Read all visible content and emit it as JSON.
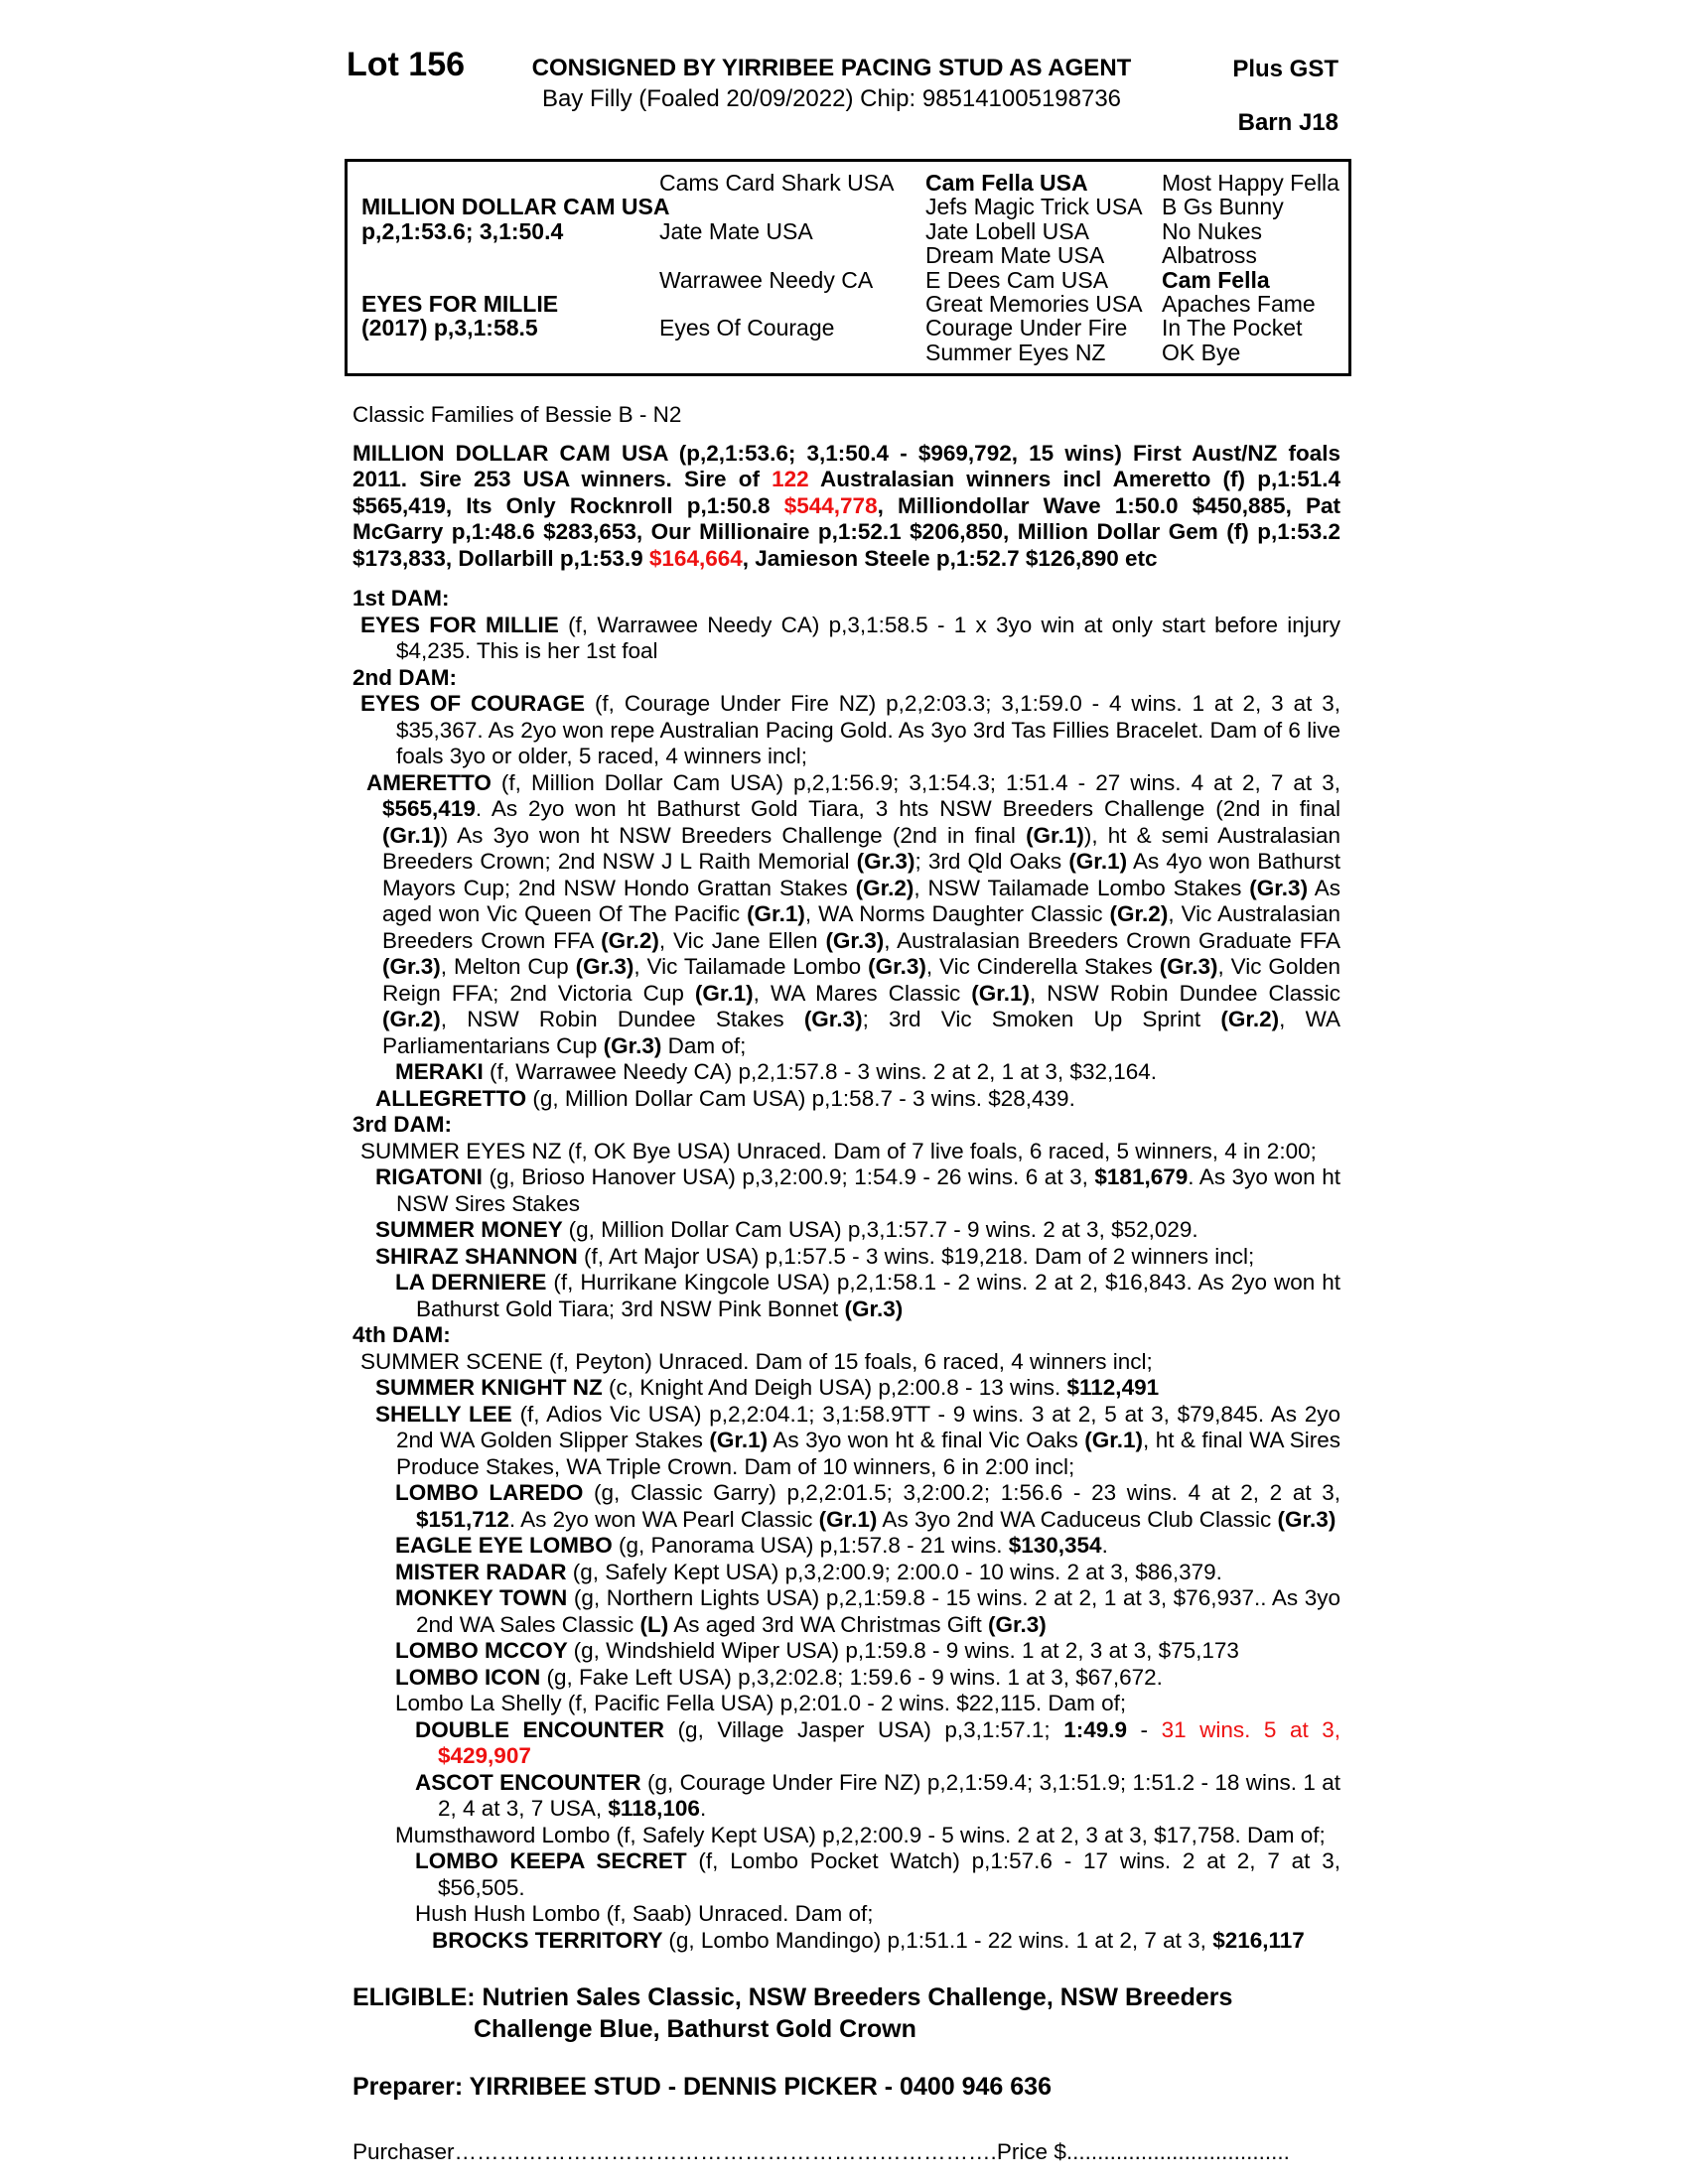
{
  "accent_red": "#ee1111",
  "header": {
    "lot": "Lot 156",
    "consigned": "CONSIGNED BY YIRRIBEE PACING STUD AS AGENT",
    "foal_line": "Bay Filly (Foaled  20/09/2022) Chip: 985141005198736",
    "plus_gst": "Plus GST",
    "barn": "Barn J18"
  },
  "pedigree_table": {
    "cells": [
      {
        "c": 1,
        "r": 2,
        "t": "MILLION DOLLAR CAM USA",
        "b": 1
      },
      {
        "c": 1,
        "r": 3,
        "t": "p,2,1:53.6; 3,1:50.4",
        "b": 1
      },
      {
        "c": 1,
        "r": 6,
        "t": "EYES FOR MILLIE",
        "b": 1
      },
      {
        "c": 1,
        "r": 7,
        "t": "(2017) p,3,1:58.5",
        "b": 1
      },
      {
        "c": 2,
        "r": 1,
        "t": "Cams Card Shark USA"
      },
      {
        "c": 2,
        "r": 3,
        "t": "Jate Mate USA"
      },
      {
        "c": 2,
        "r": 5,
        "t": "Warrawee Needy CA"
      },
      {
        "c": 2,
        "r": 7,
        "t": "Eyes Of Courage"
      },
      {
        "c": 3,
        "r": 1,
        "t": "Cam Fella USA",
        "b": 1
      },
      {
        "c": 3,
        "r": 2,
        "t": "Jefs Magic Trick USA"
      },
      {
        "c": 3,
        "r": 3,
        "t": "Jate Lobell USA"
      },
      {
        "c": 3,
        "r": 4,
        "t": "Dream Mate USA"
      },
      {
        "c": 3,
        "r": 5,
        "t": "E Dees Cam USA"
      },
      {
        "c": 3,
        "r": 6,
        "t": "Great Memories USA"
      },
      {
        "c": 3,
        "r": 7,
        "t": "Courage Under Fire"
      },
      {
        "c": 3,
        "r": 8,
        "t": "Summer Eyes NZ"
      },
      {
        "c": 4,
        "r": 1,
        "t": "Most Happy Fella"
      },
      {
        "c": 4,
        "r": 2,
        "t": "B Gs Bunny"
      },
      {
        "c": 4,
        "r": 3,
        "t": "No Nukes"
      },
      {
        "c": 4,
        "r": 4,
        "t": "Albatross"
      },
      {
        "c": 4,
        "r": 5,
        "t": "Cam Fella",
        "b": 1
      },
      {
        "c": 4,
        "r": 6,
        "t": "Apaches Fame"
      },
      {
        "c": 4,
        "r": 7,
        "t": "In The Pocket"
      },
      {
        "c": 4,
        "r": 8,
        "t": "OK Bye"
      }
    ]
  },
  "family_line": "Classic Families of Bessie B - N2",
  "body": [
    {
      "cls": "mt12",
      "name": "sire-summary",
      "seg": [
        {
          "t": "MILLION DOLLAR CAM USA (p,2,1:53.6; 3,1:50.4 - $969,792, 15 wins) First Aust/NZ foals 2011. Sire 253 USA winners. Sire of ",
          "b": 1
        },
        {
          "t": "122",
          "b": 1,
          "r": 1
        },
        {
          "t": " Australasian winners incl Ameretto (f) p,1:51.4 $565,419, Its Only Rocknroll p,1:50.8 ",
          "b": 1
        },
        {
          "t": "$544,778",
          "b": 1,
          "r": 1
        },
        {
          "t": ",  Milliondollar Wave 1:50.0 $450,885, Pat McGarry p,1:48.6 $283,653, Our Millionaire p,1:52.1 $206,850, Million Dollar Gem (f) p,1:53.2 $173,833, Dollarbill p,1:53.9 ",
          "b": 1
        },
        {
          "t": "$164,664",
          "b": 1,
          "r": 1
        },
        {
          "t": ", Jamieson Steele p,1:52.7 $126,890 etc",
          "b": 1
        }
      ]
    },
    {
      "cls": "h mt14",
      "name": "dam-heading-1st",
      "seg": [
        {
          "t": "1st DAM:",
          "b": 1
        }
      ]
    },
    {
      "cls": "i1",
      "name": "horse-entry",
      "seg": [
        {
          "t": "EYES FOR MILLIE ",
          "b": 1
        },
        {
          "t": "(f, Warrawee Needy CA) p,3,1:58.5 - 1 x 3yo win at only start before injury $4,235. This is her 1st foal"
        }
      ]
    },
    {
      "cls": "h",
      "name": "dam-heading-2nd",
      "seg": [
        {
          "t": "2nd DAM:",
          "b": 1
        }
      ]
    },
    {
      "cls": "i1",
      "name": "horse-entry",
      "seg": [
        {
          "t": "EYES OF COURAGE ",
          "b": 1
        },
        {
          "t": "(f, Courage Under Fire NZ) p,2,2:03.3; 3,1:59.0 - 4 wins. 1 at 2, 3 at 3, $35,367. As 2yo won repe Australian Pacing Gold. As 3yo 3rd Tas Fillies Bracelet. Dam of 6 live foals 3yo or older, 5 raced, 4 winners incl;"
        }
      ]
    },
    {
      "cls": "iA",
      "name": "horse-entry",
      "seg": [
        {
          "t": "AMERETTO ",
          "b": 1
        },
        {
          "t": "(f, Million Dollar Cam USA) p,2,1:56.9; 3,1:54.3; 1:51.4 - 27 wins. 4 at 2, 7 at 3, "
        },
        {
          "t": "$565,419",
          "b": 1
        },
        {
          "t": ". As 2yo won ht Bathurst Gold Tiara, 3 hts NSW Breeders Challenge (2nd in final "
        },
        {
          "t": "(Gr.1)",
          "b": 1
        },
        {
          "t": ") As 3yo won ht NSW Breeders Challenge (2nd in final "
        },
        {
          "t": "(Gr.1)",
          "b": 1
        },
        {
          "t": "), ht & semi Australasian Breeders Crown; 2nd NSW J L Raith Memorial "
        },
        {
          "t": "(Gr.3)",
          "b": 1
        },
        {
          "t": "; 3rd Qld Oaks "
        },
        {
          "t": "(Gr.1)",
          "b": 1
        },
        {
          "t": " As 4yo won Bathurst Mayors Cup; 2nd NSW Hondo Grattan Stakes "
        },
        {
          "t": "(Gr.2)",
          "b": 1
        },
        {
          "t": ", NSW Tailamade Lombo Stakes "
        },
        {
          "t": "(Gr.3)",
          "b": 1
        },
        {
          "t": " As aged won Vic Queen Of The Pacific "
        },
        {
          "t": "(Gr.1)",
          "b": 1
        },
        {
          "t": ", WA Norms Daughter Classic "
        },
        {
          "t": "(Gr.2)",
          "b": 1
        },
        {
          "t": ", Vic Australasian Breeders Crown FFA "
        },
        {
          "t": "(Gr.2)",
          "b": 1
        },
        {
          "t": ", Vic Jane Ellen "
        },
        {
          "t": "(Gr.3)",
          "b": 1
        },
        {
          "t": ", Australasian Breeders Crown Graduate FFA "
        },
        {
          "t": "(Gr.3)",
          "b": 1
        },
        {
          "t": ", Melton Cup "
        },
        {
          "t": "(Gr.3)",
          "b": 1
        },
        {
          "t": ", Vic Tailamade Lombo "
        },
        {
          "t": "(Gr.3)",
          "b": 1
        },
        {
          "t": ", Vic Cinderella Stakes "
        },
        {
          "t": "(Gr.3)",
          "b": 1
        },
        {
          "t": ", Vic Golden Reign FFA; 2nd Victoria Cup "
        },
        {
          "t": "(Gr.1)",
          "b": 1
        },
        {
          "t": ", WA Mares Classic "
        },
        {
          "t": "(Gr.1)",
          "b": 1
        },
        {
          "t": ", NSW Robin Dundee Classic "
        },
        {
          "t": "(Gr.2)",
          "b": 1
        },
        {
          "t": ", NSW Robin Dundee Stakes "
        },
        {
          "t": "(Gr.3)",
          "b": 1
        },
        {
          "t": "; 3rd Vic Smoken Up Sprint "
        },
        {
          "t": "(Gr.2)",
          "b": 1
        },
        {
          "t": ", WA Parliamentarians Cup "
        },
        {
          "t": "(Gr.3)",
          "b": 1
        },
        {
          "t": " Dam of;"
        }
      ]
    },
    {
      "cls": "i3",
      "name": "horse-entry",
      "seg": [
        {
          "t": "MERAKI ",
          "b": 1
        },
        {
          "t": "(f, Warrawee Needy CA) p,2,1:57.8 - 3 wins. 2 at 2, 1 at 3, $32,164."
        }
      ]
    },
    {
      "cls": "i2",
      "name": "horse-entry",
      "seg": [
        {
          "t": "ALLEGRETTO ",
          "b": 1
        },
        {
          "t": "(g, Million Dollar Cam USA) p,1:58.7 - 3 wins. $28,439."
        }
      ]
    },
    {
      "cls": "h",
      "name": "dam-heading-3rd",
      "seg": [
        {
          "t": "3rd DAM:",
          "b": 1
        }
      ]
    },
    {
      "cls": "i1",
      "name": "horse-entry",
      "seg": [
        {
          "t": "SUMMER EYES NZ (f, OK Bye USA) Unraced. Dam of 7 live foals, 6 raced, 5 winners, 4 in 2:00;"
        }
      ]
    },
    {
      "cls": "i2",
      "name": "horse-entry",
      "seg": [
        {
          "t": "RIGATONI ",
          "b": 1
        },
        {
          "t": "(g, Brioso Hanover USA) p,3,2:00.9; 1:54.9 - 26 wins. 6 at 3, "
        },
        {
          "t": "$181,679",
          "b": 1
        },
        {
          "t": ". As 3yo won ht NSW Sires Stakes"
        }
      ]
    },
    {
      "cls": "i2",
      "name": "horse-entry",
      "seg": [
        {
          "t": "SUMMER MONEY ",
          "b": 1
        },
        {
          "t": "(g, Million Dollar Cam USA) p,3,1:57.7 - 9 wins. 2 at 3, $52,029."
        }
      ]
    },
    {
      "cls": "i2",
      "name": "horse-entry",
      "seg": [
        {
          "t": "SHIRAZ SHANNON ",
          "b": 1
        },
        {
          "t": "(f, Art Major USA) p,1:57.5 - 3 wins. $19,218. Dam of 2 winners incl;"
        }
      ]
    },
    {
      "cls": "i3",
      "name": "horse-entry",
      "seg": [
        {
          "t": "LA DERNIERE ",
          "b": 1
        },
        {
          "t": "(f, Hurrikane Kingcole USA) p,2,1:58.1 - 2 wins. 2 at 2, $16,843. As 2yo won ht Bathurst Gold Tiara; 3rd NSW Pink Bonnet "
        },
        {
          "t": "(Gr.3)",
          "b": 1
        }
      ]
    },
    {
      "cls": "h",
      "name": "dam-heading-4th",
      "seg": [
        {
          "t": "4th DAM:",
          "b": 1
        }
      ]
    },
    {
      "cls": "i1",
      "name": "horse-entry",
      "seg": [
        {
          "t": "SUMMER SCENE (f, Peyton) Unraced. Dam of 15 foals, 6 raced, 4 winners incl;"
        }
      ]
    },
    {
      "cls": "i2",
      "name": "horse-entry",
      "seg": [
        {
          "t": "SUMMER KNIGHT NZ ",
          "b": 1
        },
        {
          "t": "(c, Knight And Deigh USA) p,2:00.8 - 13 wins. "
        },
        {
          "t": "$112,491",
          "b": 1
        }
      ]
    },
    {
      "cls": "i2",
      "name": "horse-entry",
      "seg": [
        {
          "t": "SHELLY LEE ",
          "b": 1
        },
        {
          "t": "(f, Adios Vic USA) p,2,2:04.1; 3,1:58.9TT - 9 wins. 3 at 2, 5 at 3, $79,845. As 2yo 2nd WA Golden Slipper Stakes "
        },
        {
          "t": "(Gr.1)",
          "b": 1
        },
        {
          "t": " As 3yo won ht & final Vic Oaks "
        },
        {
          "t": "(Gr.1)",
          "b": 1
        },
        {
          "t": ", ht & final WA Sires Produce Stakes, WA Triple Crown. Dam of 10 winners, 6 in 2:00 incl;"
        }
      ]
    },
    {
      "cls": "i3",
      "name": "horse-entry",
      "seg": [
        {
          "t": "LOMBO LAREDO ",
          "b": 1
        },
        {
          "t": "(g, Classic Garry) p,2,2:01.5; 3,2:00.2; 1:56.6 - 23 wins. 4 at 2, 2 at 3, "
        },
        {
          "t": "$151,712",
          "b": 1
        },
        {
          "t": ". As 2yo won WA Pearl Classic "
        },
        {
          "t": "(Gr.1)",
          "b": 1
        },
        {
          "t": " As 3yo 2nd WA Caduceus Club Classic "
        },
        {
          "t": "(Gr.3)",
          "b": 1
        }
      ]
    },
    {
      "cls": "i3",
      "name": "horse-entry",
      "seg": [
        {
          "t": "EAGLE EYE LOMBO ",
          "b": 1
        },
        {
          "t": "(g, Panorama USA) p,1:57.8 - 21 wins. "
        },
        {
          "t": "$130,354",
          "b": 1
        },
        {
          "t": "."
        }
      ]
    },
    {
      "cls": "i3",
      "name": "horse-entry",
      "seg": [
        {
          "t": "MISTER RADAR ",
          "b": 1
        },
        {
          "t": "(g, Safely Kept USA) p,3,2:00.9; 2:00.0 - 10 wins. 2 at 3, $86,379."
        }
      ]
    },
    {
      "cls": "i3",
      "name": "horse-entry",
      "seg": [
        {
          "t": "MONKEY TOWN ",
          "b": 1
        },
        {
          "t": "(g, Northern Lights USA) p,2,1:59.8 - 15 wins. 2 at 2, 1 at 3, $76,937.. As 3yo 2nd WA Sales Classic "
        },
        {
          "t": "(L)",
          "b": 1
        },
        {
          "t": " As aged 3rd WA Christmas Gift "
        },
        {
          "t": "(Gr.3)",
          "b": 1
        }
      ]
    },
    {
      "cls": "i3",
      "name": "horse-entry",
      "seg": [
        {
          "t": "LOMBO MCCOY ",
          "b": 1
        },
        {
          "t": "(g, Windshield Wiper USA) p,1:59.8 - 9 wins. 1 at 2, 3 at 3, $75,173"
        }
      ]
    },
    {
      "cls": "i3",
      "name": "horse-entry",
      "seg": [
        {
          "t": "LOMBO ICON ",
          "b": 1
        },
        {
          "t": "(g, Fake Left USA) p,3,2:02.8; 1:59.6 - 9 wins. 1 at 3, $67,672."
        }
      ]
    },
    {
      "cls": "i3",
      "name": "horse-entry",
      "seg": [
        {
          "t": "Lombo La Shelly (f, Pacific Fella USA) p,2:01.0 - 2 wins. $22,115. Dam of;"
        }
      ]
    },
    {
      "cls": "i4",
      "name": "horse-entry",
      "seg": [
        {
          "t": "DOUBLE ENCOUNTER ",
          "b": 1
        },
        {
          "t": "(g, Village Jasper USA) p,3,1:57.1; "
        },
        {
          "t": "1:49.9",
          "b": 1
        },
        {
          "t": " - "
        },
        {
          "t": "31 wins. 5 at 3, ",
          "r": 1
        },
        {
          "t": "$429,907",
          "b": 1,
          "r": 1
        }
      ]
    },
    {
      "cls": "i4",
      "name": "horse-entry",
      "seg": [
        {
          "t": "ASCOT ENCOUNTER ",
          "b": 1
        },
        {
          "t": "(g, Courage Under Fire NZ) p,2,1:59.4; 3,1:51.9; 1:51.2 - 18 wins. 1 at 2, 4 at 3, 7 USA, "
        },
        {
          "t": "$118,106",
          "b": 1
        },
        {
          "t": "."
        }
      ]
    },
    {
      "cls": "i3",
      "name": "horse-entry",
      "seg": [
        {
          "t": "Mumsthaword Lombo (f, Safely Kept USA) p,2,2:00.9 - 5 wins. 2 at 2, 3 at 3, $17,758. Dam of;"
        }
      ]
    },
    {
      "cls": "i4",
      "name": "horse-entry",
      "seg": [
        {
          "t": "LOMBO KEEPA SECRET ",
          "b": 1
        },
        {
          "t": "(f, Lombo Pocket Watch) p,1:57.6 - 17 wins. 2 at 2, 7 at 3, $56,505."
        }
      ]
    },
    {
      "cls": "i4",
      "name": "horse-entry",
      "seg": [
        {
          "t": "Hush Hush Lombo (f, Saab) Unraced. Dam of;"
        }
      ]
    },
    {
      "cls": "i5",
      "name": "horse-entry",
      "seg": [
        {
          "t": "BROCKS TERRITORY ",
          "b": 1
        },
        {
          "t": "(g, Lombo Mandingo) p,1:51.1 - 22 wins. 1 at 2, 7 at 3, "
        },
        {
          "t": "$216,117",
          "b": 1
        }
      ]
    }
  ],
  "footer": {
    "eligible_line1": "ELIGIBLE: Nutrien Sales Classic, NSW Breeders Challenge, NSW Breeders",
    "eligible_line2": "Challenge Blue, Bathurst Gold Crown",
    "preparer": "Preparer: YIRRIBEE STUD - DENNIS PICKER - 0400 946 636",
    "purchaser_label": "Purchaser",
    "purchaser_dots": "……………………………………………………………….",
    "price_label": "Price $",
    "price_dots": "...................................."
  }
}
